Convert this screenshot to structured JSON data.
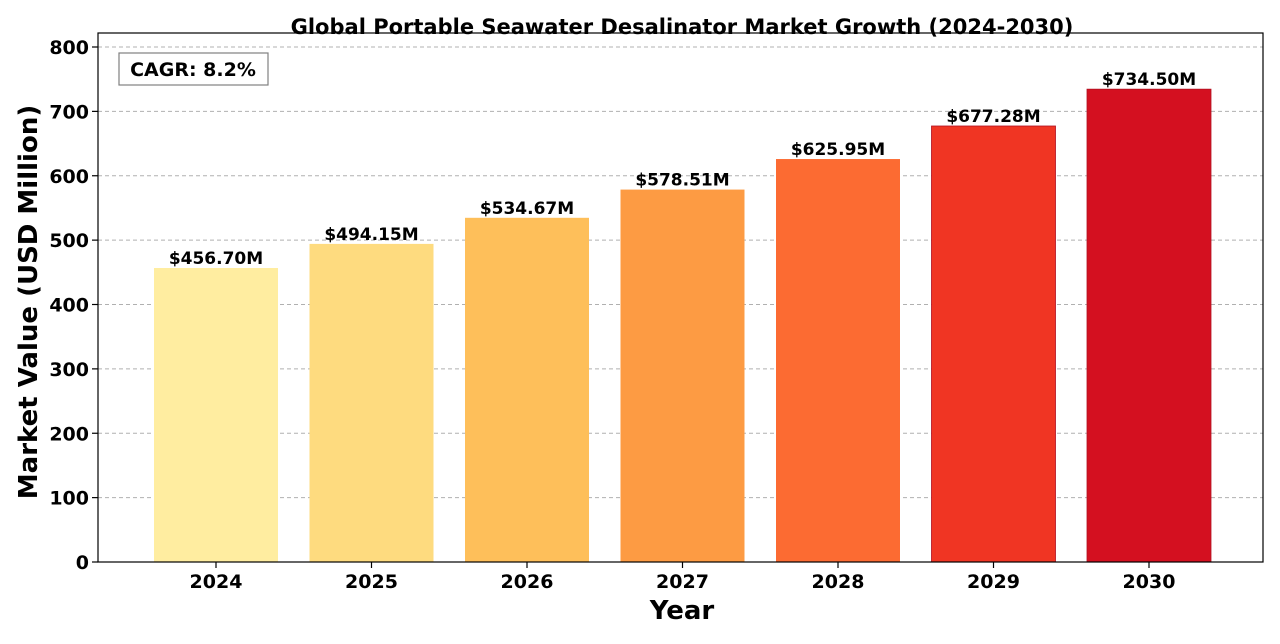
{
  "chart_data": {
    "type": "bar",
    "title": "Global Portable Seawater Desalinator Market Growth (2024-2030)",
    "xlabel": "Year",
    "ylabel": "Market Value (USD Million)",
    "categories": [
      "2024",
      "2025",
      "2026",
      "2027",
      "2028",
      "2029",
      "2030"
    ],
    "values": [
      456.7,
      494.15,
      534.67,
      578.51,
      625.95,
      677.28,
      734.5
    ],
    "data_labels": [
      "$456.70M",
      "$494.15M",
      "$534.67M",
      "$578.51M",
      "$625.95M",
      "$677.28M",
      "$734.50M"
    ],
    "bar_colors": [
      "#ffeda0",
      "#fedb7f",
      "#febf5a",
      "#fd9b43",
      "#fc6b32",
      "#f03523",
      "#d41020"
    ],
    "ylim": [
      0,
      800
    ],
    "yticks": [
      0,
      100,
      200,
      300,
      400,
      500,
      600,
      700,
      800
    ],
    "grid": "y-dashed",
    "annotation": "CAGR: 8.2%"
  }
}
